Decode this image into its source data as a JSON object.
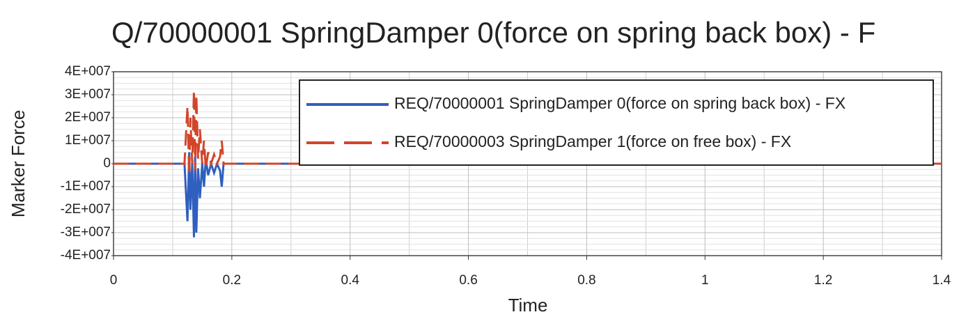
{
  "chart_data": {
    "type": "line",
    "title": "Q/70000001 SpringDamper 0(force on spring back box) - F",
    "x_label": "Time",
    "y_label": "Marker Force",
    "x": [
      0,
      0.05,
      0.1,
      0.12,
      0.125,
      0.128,
      0.13,
      0.133,
      0.136,
      0.138,
      0.14,
      0.143,
      0.146,
      0.15,
      0.153,
      0.156,
      0.16,
      0.165,
      0.17,
      0.175,
      0.18,
      0.183,
      0.186,
      0.19,
      0.2,
      0.3,
      0.5,
      0.8,
      1.0,
      1.2,
      1.4
    ],
    "series": [
      {
        "name": "REQ/70000001 SpringDamper 0(force on spring back box) - FX",
        "color": "#2f5fbf",
        "dashed": false,
        "values": [
          0,
          0,
          0,
          0,
          -25000000,
          5000000,
          -20000000,
          0,
          -32000000,
          3000000,
          -30000000,
          -2000000,
          -15000000,
          0,
          -10000000,
          2000000,
          -5000000,
          0,
          -4000000,
          0,
          -3000000,
          -10000000,
          0,
          0,
          0,
          0,
          0,
          0,
          0,
          0,
          0
        ]
      },
      {
        "name": "REQ/70000003 SpringDamper 1(force on free box) - FX",
        "color": "#d2452a",
        "dashed": true,
        "values": [
          0,
          0,
          0,
          0,
          25000000,
          -5000000,
          20000000,
          0,
          32000000,
          -3000000,
          30000000,
          2000000,
          15000000,
          0,
          10000000,
          -2000000,
          5000000,
          0,
          4000000,
          0,
          3000000,
          10000000,
          0,
          0,
          0,
          0,
          0,
          0,
          0,
          0,
          0
        ]
      }
    ],
    "xlim": [
      0,
      1.4
    ],
    "xticks": [
      0,
      0.2,
      0.4,
      0.6,
      0.8,
      1,
      1.2,
      1.4
    ],
    "ylim": [
      -40000000,
      40000000
    ],
    "yticks": [
      {
        "value": -40000000,
        "label": "-4E+007"
      },
      {
        "value": -30000000,
        "label": "-3E+007"
      },
      {
        "value": -20000000,
        "label": "-2E+007"
      },
      {
        "value": -10000000,
        "label": "-1E+007"
      },
      0,
      {
        "value": 10000000,
        "label": "1E+007"
      },
      {
        "value": 20000000,
        "label": "2E+007"
      },
      {
        "value": 30000000,
        "label": "3E+007"
      },
      {
        "value": 40000000,
        "label": "4E+007"
      }
    ],
    "grid": true,
    "legend": "top-right"
  }
}
